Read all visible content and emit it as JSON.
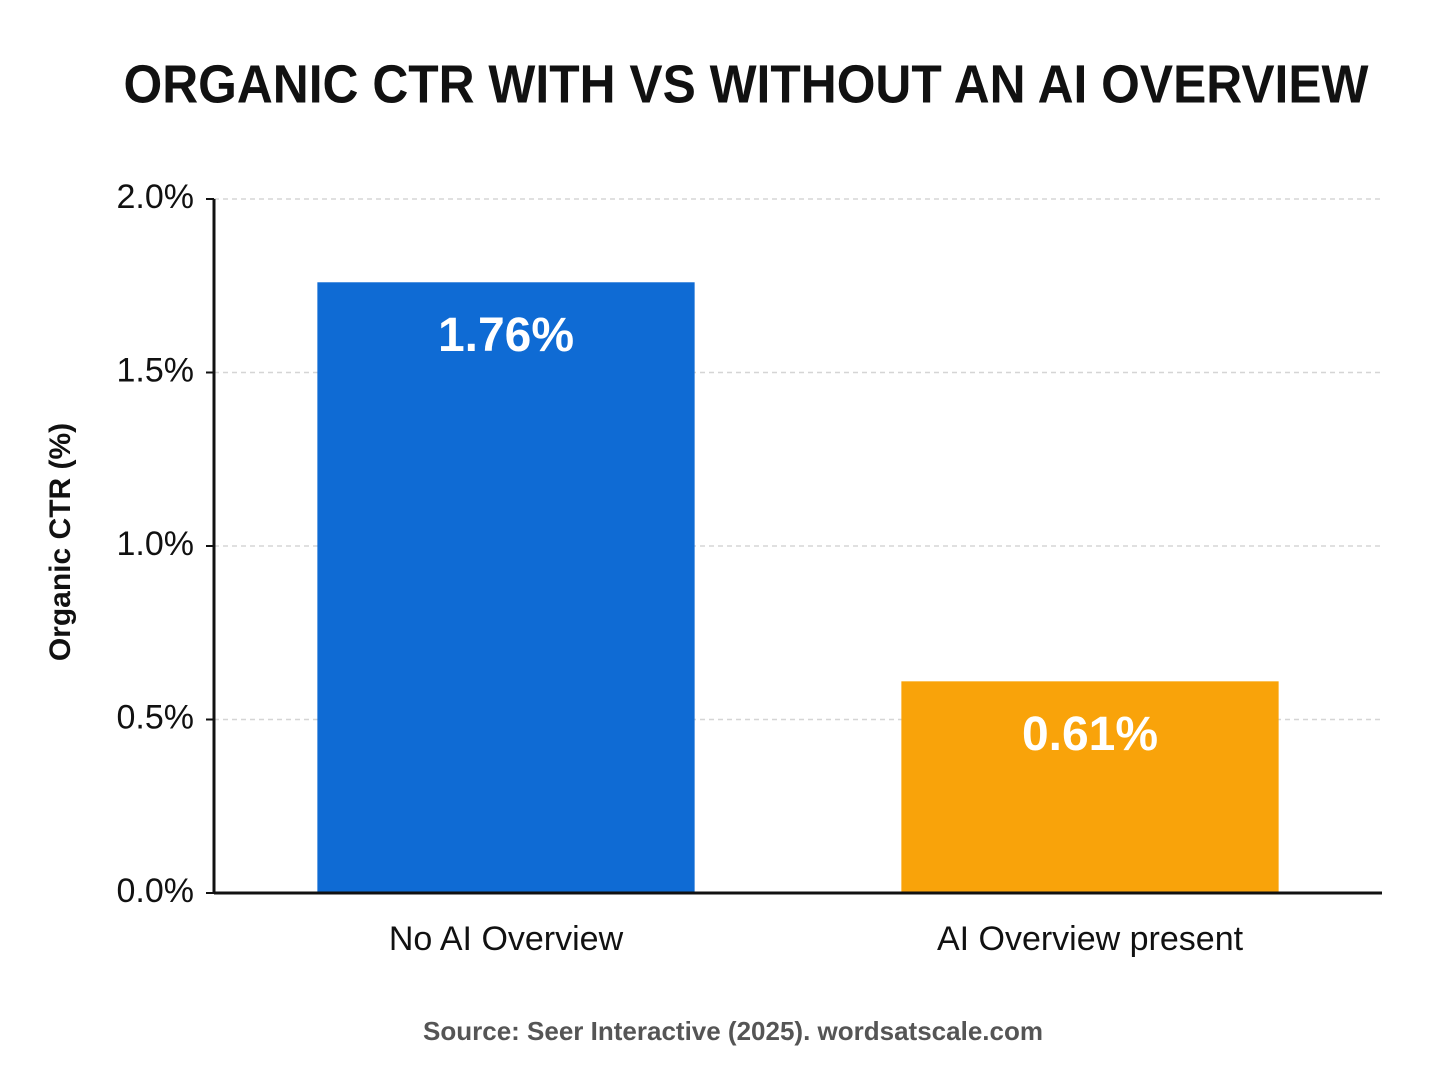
{
  "chart_data": {
    "type": "bar",
    "title": "ORGANIC CTR WITH VS WITHOUT AN AI OVERVIEW",
    "y_label": "Organic CTR (%)",
    "source": "Source: Seer Interactive (2025). wordsatscale.com",
    "categories": [
      "No AI Overview",
      "AI Overview present"
    ],
    "values": [
      1.76,
      0.61
    ],
    "value_labels": [
      "1.76%",
      "0.61%"
    ],
    "colors": [
      "#0f6bd4",
      "#f9a30a"
    ],
    "ylim": [
      0,
      2
    ],
    "yticks": [
      {
        "value": 0,
        "label": "0.0%"
      },
      {
        "value": 0.5,
        "label": "0.5%"
      },
      {
        "value": 1,
        "label": "1.0%"
      },
      {
        "value": 1.5,
        "label": "1.5%"
      },
      {
        "value": 2,
        "label": "2.0%"
      }
    ],
    "grid": true
  }
}
